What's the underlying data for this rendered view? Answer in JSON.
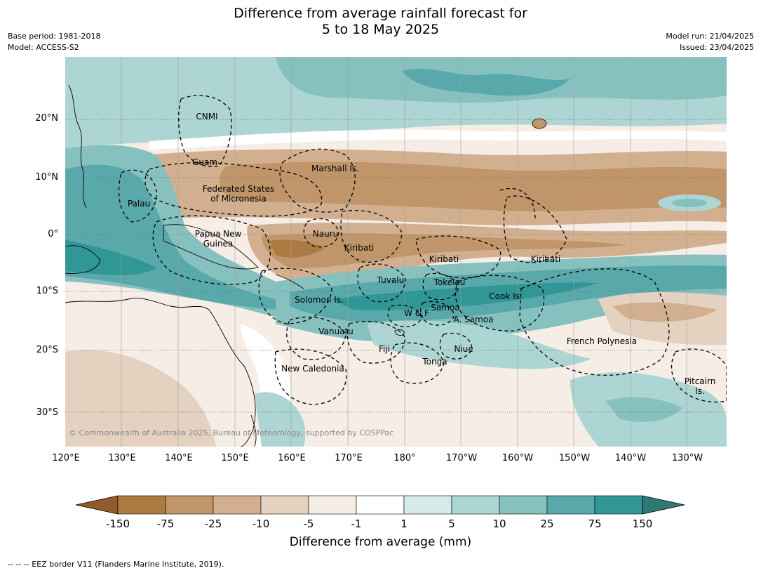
{
  "title": {
    "line1": "Difference from average rainfall forecast for",
    "line2": "5 to 18 May 2025"
  },
  "meta": {
    "base_period": "Base period: 1981-2018",
    "model": "Model: ACCESS-S2",
    "model_run": "Model run: 21/04/2025",
    "issued": "Issued: 23/04/2025"
  },
  "axes": {
    "lat_labels": [
      "20°N",
      "10°N",
      "0°",
      "10°S",
      "20°S",
      "30°S"
    ],
    "lon_labels": [
      "120°E",
      "130°E",
      "140°E",
      "150°E",
      "160°E",
      "170°E",
      "180°",
      "170°W",
      "160°W",
      "150°W",
      "140°W",
      "130°W"
    ]
  },
  "regions": [
    {
      "name": "CNMI"
    },
    {
      "name": "Guam"
    },
    {
      "name": "Marshall Is."
    },
    {
      "name": "Federated States of Micronesia",
      "line1": "Federated States",
      "line2": "of Micronesia"
    },
    {
      "name": "Palau"
    },
    {
      "name": "Nauru"
    },
    {
      "name": "Papua New Guinea",
      "line1": "Papua New",
      "line2": "Guinea"
    },
    {
      "name": "Kiribati"
    },
    {
      "name": "Kiribati"
    },
    {
      "name": "Kiribati"
    },
    {
      "name": "Tuvalu"
    },
    {
      "name": "Tokelau"
    },
    {
      "name": "Solomon Is."
    },
    {
      "name": "Cook Is."
    },
    {
      "name": "Samoa"
    },
    {
      "name": "W & F"
    },
    {
      "name": "A. Samoa"
    },
    {
      "name": "Vanuatu"
    },
    {
      "name": "French Polynesia"
    },
    {
      "name": "Fiji"
    },
    {
      "name": "Niue"
    },
    {
      "name": "Tonga"
    },
    {
      "name": "New Caledonia"
    },
    {
      "name": "Pitcairn Is.",
      "line1": "Pitcairn",
      "line2": "Is."
    }
  ],
  "legend": {
    "labels": [
      "-150",
      "-75",
      "-25",
      "-10",
      "-5",
      "-1",
      "1",
      "5",
      "10",
      "25",
      "75",
      "150"
    ],
    "colors": [
      "#905a2a",
      "#ae7a43",
      "#c0956a",
      "#d2b08f",
      "#e5d1bf",
      "#f5ede6",
      "#ffffff",
      "#d6ebe8",
      "#acd5d3",
      "#86c0bf",
      "#59a9aa",
      "#319696",
      "#307776"
    ],
    "title": "Difference from average (mm)"
  },
  "copyright": "© Commonwealth of Australia 2025, Bureau of Meteorology, supported by COSPPac",
  "footer": "--  --  -- EEZ border V11 (Flanders Marine Institute, 2019)."
}
